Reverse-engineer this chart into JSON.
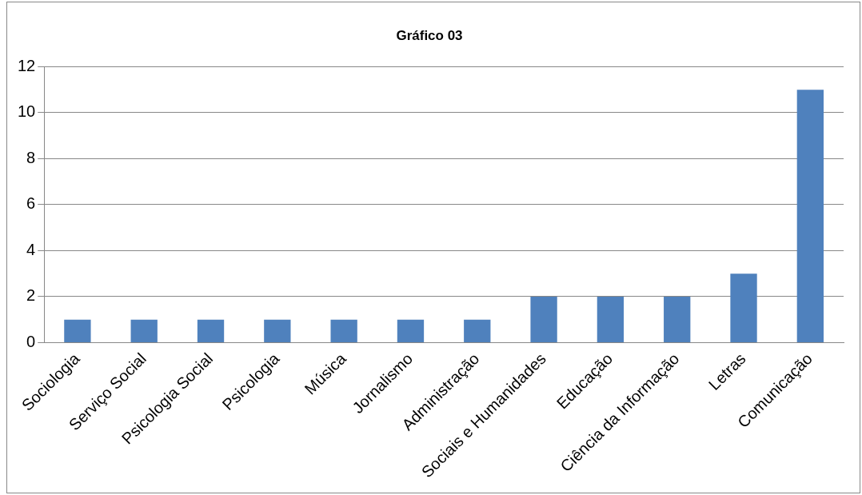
{
  "chart_data": {
    "type": "bar",
    "title": "Gráfico 03",
    "categories": [
      "Sociologia",
      "Serviço Social",
      "Psicologia Social",
      "Psicologia",
      "Música",
      "Jornalismo",
      "Administração",
      "Sociais e Humanidades",
      "Educação",
      "Ciência da Informação",
      "Letras",
      "Comunicação"
    ],
    "values": [
      1,
      1,
      1,
      1,
      1,
      1,
      1,
      2,
      2,
      2,
      3,
      11
    ],
    "color": "#4f81bd",
    "ylim": [
      0,
      12
    ],
    "yticks": [
      0,
      2,
      4,
      6,
      8,
      10,
      12
    ],
    "grid": "y",
    "legend": false
  }
}
